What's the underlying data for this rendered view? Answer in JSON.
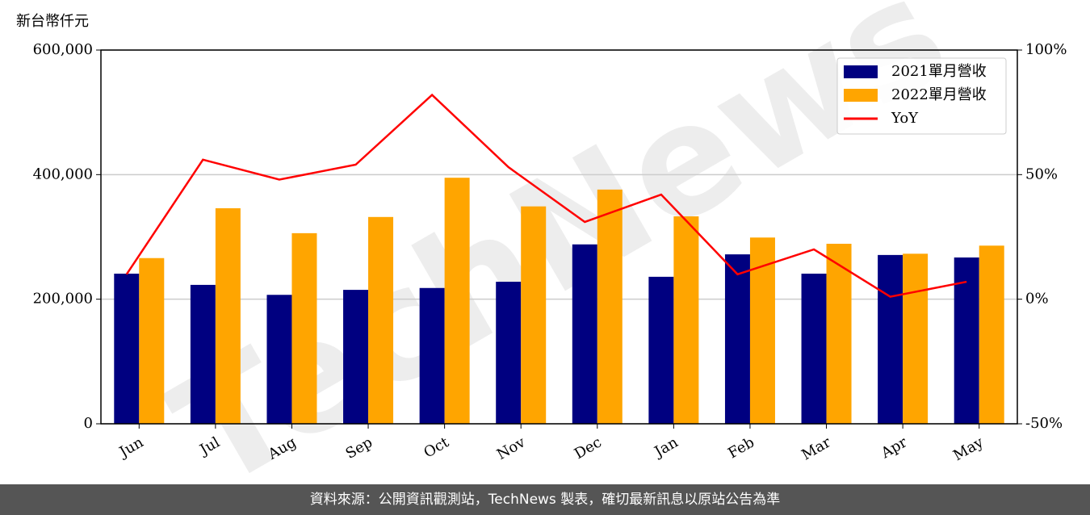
{
  "chart_data": {
    "type": "bar",
    "unit_label": "新台幣仟元",
    "watermark": "TechNews",
    "categories": [
      "Jun",
      "Jul",
      "Aug",
      "Sep",
      "Oct",
      "Nov",
      "Dec",
      "Jan",
      "Feb",
      "Mar",
      "Apr",
      "May"
    ],
    "series": [
      {
        "name": "2021單月營收",
        "color": "#000080",
        "values": [
          241000,
          223000,
          207000,
          215000,
          218000,
          228000,
          288000,
          236000,
          272000,
          241000,
          271000,
          267000
        ]
      },
      {
        "name": "2022單月營收",
        "color": "#ffa500",
        "values": [
          266000,
          346000,
          306000,
          332000,
          395000,
          349000,
          376000,
          333000,
          299000,
          289000,
          273000,
          286000
        ]
      },
      {
        "name": "YoY",
        "color": "#ff0000",
        "type": "line",
        "axis": "y2",
        "values": [
          10,
          56,
          48,
          54,
          82,
          53,
          31,
          42,
          10,
          20,
          1,
          7
        ]
      }
    ],
    "ylim": [
      0,
      600000
    ],
    "yticks": [
      {
        "value": 0,
        "label": "0"
      },
      {
        "value": 200000,
        "label": "200,000"
      },
      {
        "value": 400000,
        "label": "400,000"
      },
      {
        "value": 600000,
        "label": "600,000"
      }
    ],
    "y2lim": [
      -50,
      100
    ],
    "y2ticks": [
      {
        "value": -50,
        "label": "-50%"
      },
      {
        "value": 0,
        "label": "0%"
      },
      {
        "value": 50,
        "label": "50%"
      },
      {
        "value": 100,
        "label": "100%"
      }
    ],
    "grid": true,
    "legend": "upper right"
  },
  "footer": "資料來源：公開資訊觀測站，TechNews 製表，確切最新訊息以原站公告為準"
}
